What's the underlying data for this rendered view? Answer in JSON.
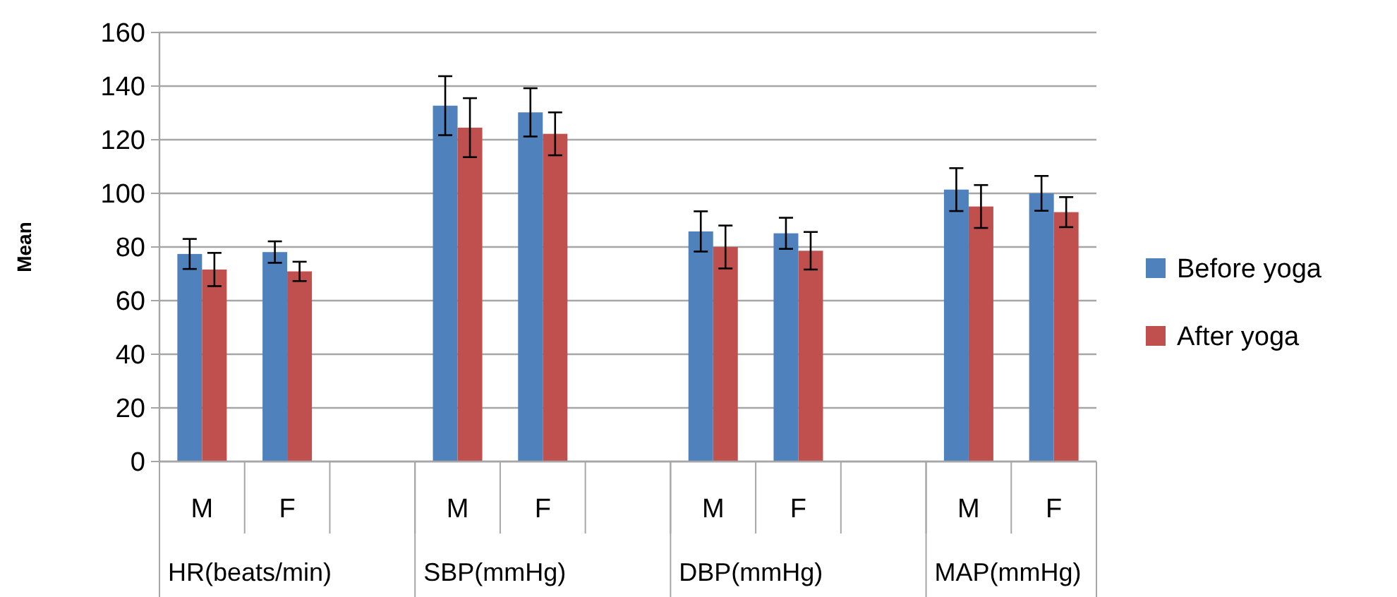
{
  "chart_data": {
    "type": "bar",
    "ylabel": "Mean",
    "categories": [
      "M",
      "F",
      null,
      "M",
      "F",
      null,
      "M",
      "F",
      null,
      "M",
      "F"
    ],
    "annotations": [
      "HR(beats/min)",
      "SBP(mmHg)",
      "DBP(mmHg)",
      "MAP(mmHg)"
    ],
    "series": [
      {
        "name": "Before yoga",
        "color": "#4f81bd",
        "values": [
          77.4,
          78.1,
          null,
          132.7,
          130.2,
          null,
          85.8,
          85.1,
          null,
          101.4,
          100
        ],
        "errors": [
          5.6,
          4,
          null,
          11,
          9,
          null,
          7.5,
          5.8,
          null,
          8,
          6.5
        ]
      },
      {
        "name": "After yoga",
        "color": "#c0504d",
        "values": [
          71.6,
          70.9,
          null,
          124.5,
          122.2,
          null,
          80,
          78.6,
          null,
          95.1,
          93
        ],
        "errors": [
          6.2,
          3.6,
          null,
          11,
          8,
          null,
          8,
          7,
          null,
          8,
          5.6
        ]
      }
    ],
    "ylim": [
      0,
      160
    ],
    "yticks": [
      0,
      20,
      40,
      60,
      80,
      100,
      120,
      140,
      160
    ],
    "grid": "y",
    "legend": "right"
  }
}
